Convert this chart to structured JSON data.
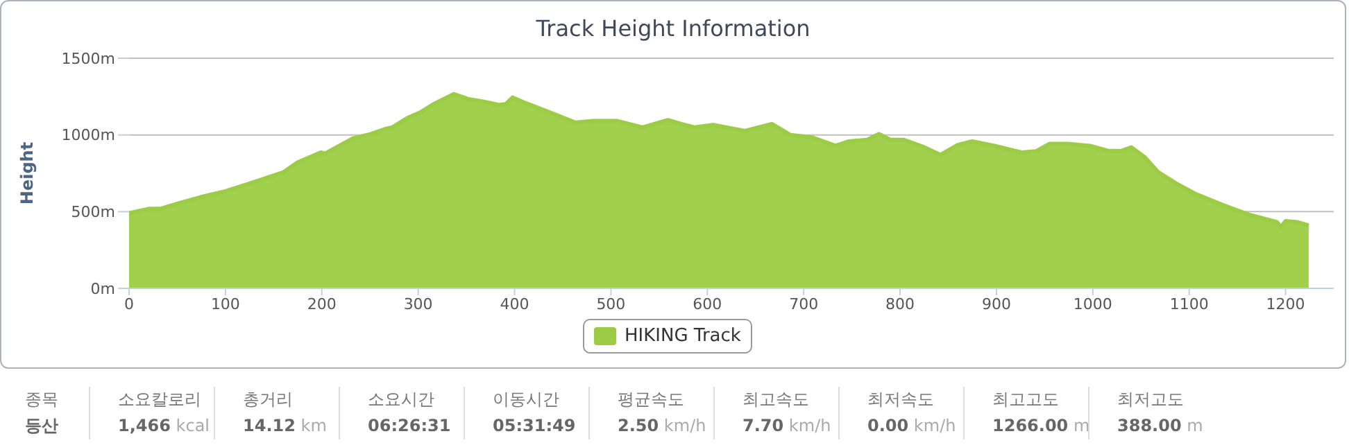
{
  "chart_data": {
    "type": "area",
    "title": "Track Height Information",
    "ylabel": "Height",
    "x": [
      0,
      21,
      33,
      50,
      74,
      100,
      126,
      160,
      175,
      199,
      203,
      232,
      251,
      266,
      273,
      290,
      302,
      316,
      337,
      352,
      367,
      384,
      391,
      398,
      410,
      434,
      463,
      482,
      506,
      533,
      559,
      573,
      587,
      606,
      639,
      667,
      686,
      709,
      733,
      747,
      766,
      778,
      790,
      804,
      823,
      842,
      860,
      875,
      898,
      926,
      941,
      955,
      974,
      997,
      1016,
      1030,
      1040,
      1054,
      1068,
      1087,
      1106,
      1134,
      1162,
      1191,
      1195,
      1200,
      1212,
      1224
    ],
    "series": [
      {
        "name": "HIKING Track",
        "color": "#9ccc45",
        "values": [
          490,
          519,
          519,
          552,
          594,
          633,
          685,
          756,
          821,
          886,
          877,
          977,
          1006,
          1039,
          1049,
          1114,
          1146,
          1201,
          1266,
          1234,
          1218,
          1195,
          1201,
          1244,
          1211,
          1153,
          1081,
          1091,
          1091,
          1049,
          1097,
          1071,
          1049,
          1065,
          1026,
          1071,
          1000,
          984,
          929,
          958,
          968,
          1006,
          968,
          968,
          925,
          870,
          935,
          958,
          929,
          886,
          893,
          942,
          942,
          929,
          896,
          896,
          919,
          854,
          756,
          682,
          617,
          545,
          481,
          432,
          399,
          438,
          432,
          409
        ]
      }
    ],
    "xlim": [
      0,
      1250
    ],
    "xticks": [
      0,
      100,
      200,
      300,
      400,
      500,
      600,
      700,
      800,
      900,
      1000,
      1100,
      1200
    ],
    "ylim": [
      0,
      1500
    ],
    "yticks": [
      {
        "value": 0,
        "label": "0m"
      },
      {
        "value": 500,
        "label": "500m"
      },
      {
        "value": 1000,
        "label": "1000m"
      },
      {
        "value": 1500,
        "label": "1500m"
      }
    ],
    "grid": "y",
    "legend": "bottom",
    "annotations": [
      "종목",
      "등산",
      "소요칼로리",
      "1,466 kcal",
      "총거리",
      "14.12 km",
      "소요시간",
      "06:26:31",
      "이동시간",
      "05:31:49",
      "평균속도",
      "2.50 km/h",
      "최고속도",
      "7.70 km/h",
      "최저속도",
      "0.00 km/h",
      "최고고도",
      "1266.00 m",
      "최저고도",
      "388.00 m"
    ]
  }
}
